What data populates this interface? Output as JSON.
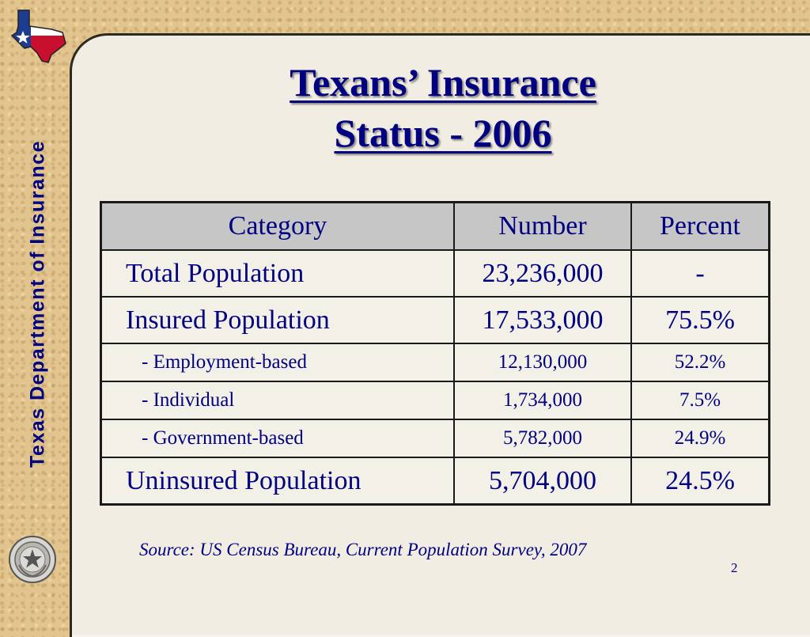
{
  "sidebar": {
    "text": "Texas Department of Insurance"
  },
  "title": {
    "line1": "Texans’ Insurance",
    "line2": "Status - 2006"
  },
  "table": {
    "headers": [
      "Category",
      "Number",
      "Percent"
    ],
    "rows": [
      {
        "category": "Total Population",
        "number": "23,236,000",
        "percent": "-"
      },
      {
        "category": "Insured Population",
        "number": "17,533,000",
        "percent": "75.5%"
      },
      {
        "category": "- Employment-based",
        "number": "12,130,000",
        "percent": "52.2%"
      },
      {
        "category": "- Individual",
        "number": "1,734,000",
        "percent": "7.5%"
      },
      {
        "category": "- Government-based",
        "number": "5,782,000",
        "percent": "24.9%"
      },
      {
        "category": "Uninsured Population",
        "number": "5,704,000",
        "percent": "24.5%"
      }
    ]
  },
  "source": "Source: US Census Bureau, Current Population Survey, 2007",
  "page_number": "2",
  "icons": {
    "top_left": "texas-flag-map-icon",
    "bottom_left": "texas-seal-icon"
  },
  "colors": {
    "text": "#000080",
    "header_bg": "#c6c6c6",
    "panel_bg": "#f1ede3",
    "frame_bg": "#e2c58e"
  }
}
